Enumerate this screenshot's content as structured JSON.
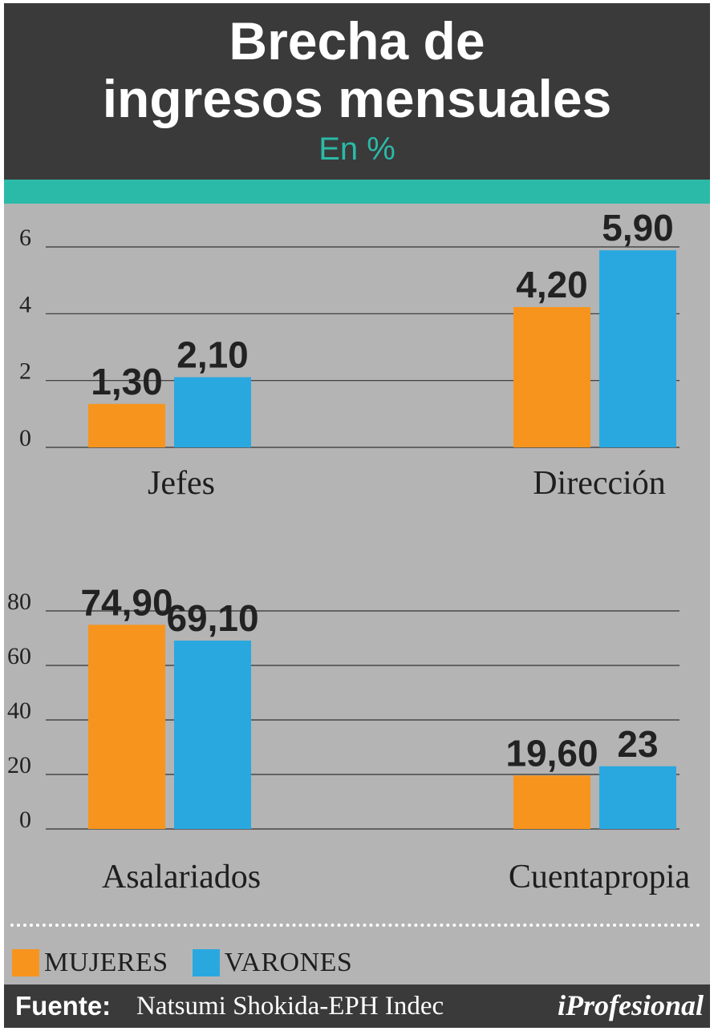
{
  "header": {
    "title_line1": "Brecha de",
    "title_line2": "ingresos mensuales",
    "subtitle": "En %"
  },
  "colors": {
    "mujeres": "#f7941d",
    "varones": "#29a8e0",
    "accent": "#2bbaa8",
    "panel": "#b4b4b4",
    "header_bg": "#3a3a3a"
  },
  "chart_data": [
    {
      "type": "bar",
      "categories": [
        "Jefes",
        "Dirección"
      ],
      "series": [
        {
          "name": "MUJERES",
          "values": [
            1.3,
            4.2
          ],
          "labels": [
            "1,30",
            "4,20"
          ]
        },
        {
          "name": "VARONES",
          "values": [
            2.1,
            5.9
          ],
          "labels": [
            "2,10",
            "5,90"
          ]
        }
      ],
      "yticks": [
        "0",
        "2",
        "4",
        "6"
      ],
      "ylim": [
        0,
        6
      ],
      "grid": true
    },
    {
      "type": "bar",
      "categories": [
        "Asalariados",
        "Cuentapropia"
      ],
      "series": [
        {
          "name": "MUJERES",
          "values": [
            74.9,
            19.6
          ],
          "labels": [
            "74,90",
            "19,60"
          ]
        },
        {
          "name": "VARONES",
          "values": [
            69.1,
            23
          ],
          "labels": [
            "69,10",
            "23"
          ]
        }
      ],
      "yticks": [
        "0",
        "20",
        "40",
        "60",
        "80"
      ],
      "ylim": [
        0,
        80
      ],
      "grid": true
    }
  ],
  "legend": {
    "position": "bottom-left",
    "items": [
      {
        "label": "MUJERES",
        "color": "#f7941d"
      },
      {
        "label": "VARONES",
        "color": "#29a8e0"
      }
    ]
  },
  "footer": {
    "source_label": "Fuente:",
    "source_text": "Natsumi Shokida-EPH Indec",
    "brand": "iProfesional"
  }
}
